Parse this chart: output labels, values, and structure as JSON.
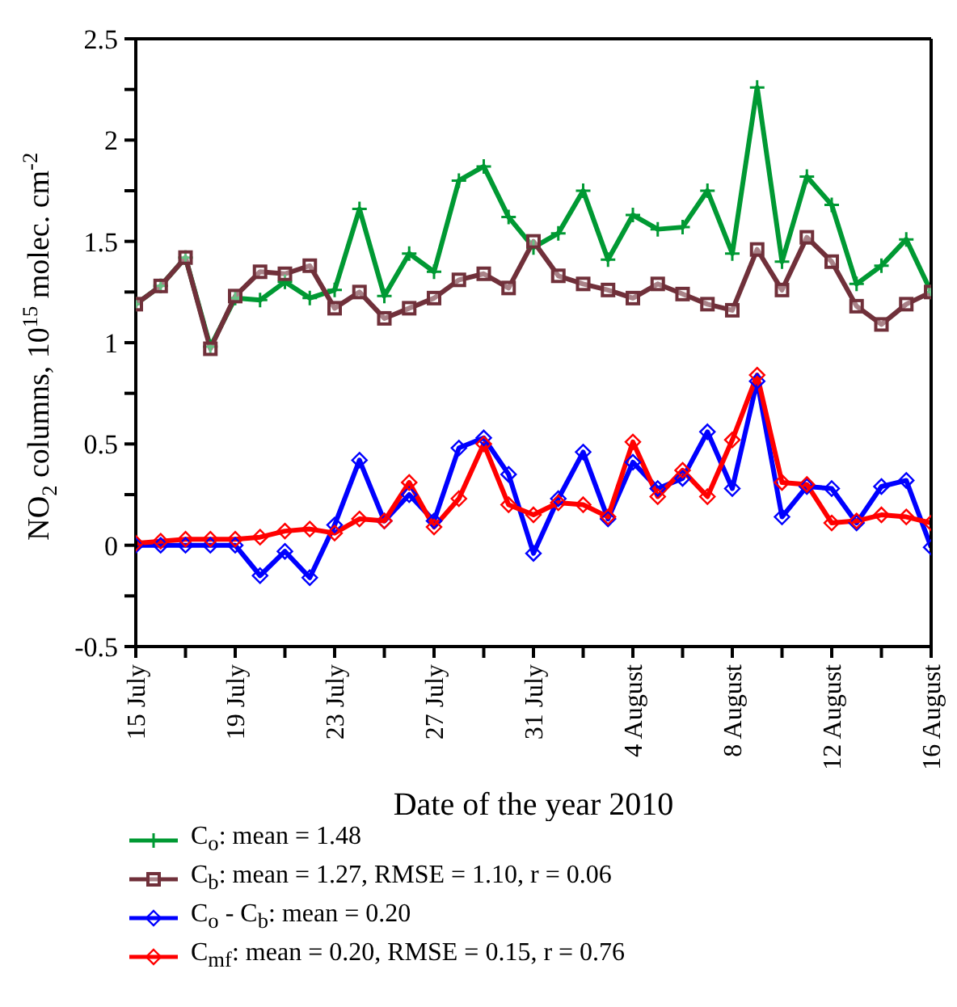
{
  "chart_data": {
    "type": "line",
    "xlabel": "Date of the year 2010",
    "ylabel": "NO$_{2}$ columns, 10$^{15}$ molec. cm$^{-2}$",
    "x": [
      "2010-07-15",
      "2010-07-16",
      "2010-07-17",
      "2010-07-18",
      "2010-07-19",
      "2010-07-20",
      "2010-07-21",
      "2010-07-22",
      "2010-07-23",
      "2010-07-24",
      "2010-07-25",
      "2010-07-26",
      "2010-07-27",
      "2010-07-28",
      "2010-07-29",
      "2010-07-30",
      "2010-07-31",
      "2010-08-01",
      "2010-08-02",
      "2010-08-03",
      "2010-08-04",
      "2010-08-05",
      "2010-08-06",
      "2010-08-07",
      "2010-08-08",
      "2010-08-09",
      "2010-08-10",
      "2010-08-11",
      "2010-08-12",
      "2010-08-13",
      "2010-08-14",
      "2010-08-15",
      "2010-08-16"
    ],
    "xlim": [
      "2010-07-15",
      "2010-08-16"
    ],
    "xticks": [
      {
        "value": "2010-07-15",
        "label": "15 July"
      },
      {
        "value": "2010-07-17",
        "label": null
      },
      {
        "value": "2010-07-19",
        "label": "19 July"
      },
      {
        "value": "2010-07-21",
        "label": null
      },
      {
        "value": "2010-07-23",
        "label": "23 July"
      },
      {
        "value": "2010-07-25",
        "label": null
      },
      {
        "value": "2010-07-27",
        "label": "27 July"
      },
      {
        "value": "2010-07-29",
        "label": null
      },
      {
        "value": "2010-07-31",
        "label": "31 July"
      },
      {
        "value": "2010-08-02",
        "label": null
      },
      {
        "value": "2010-08-04",
        "label": "4 August"
      },
      {
        "value": "2010-08-06",
        "label": null
      },
      {
        "value": "2010-08-08",
        "label": "8 August"
      },
      {
        "value": "2010-08-10",
        "label": null
      },
      {
        "value": "2010-08-12",
        "label": "12 August"
      },
      {
        "value": "2010-08-14",
        "label": null
      },
      {
        "value": "2010-08-16",
        "label": "16 August"
      }
    ],
    "ylim": [
      -0.5,
      2.5
    ],
    "yticks": [
      -0.5,
      {
        "value": -0.25,
        "label": null
      },
      0,
      {
        "value": 0.25,
        "label": null
      },
      0.5,
      {
        "value": 0.75,
        "label": null
      },
      1,
      {
        "value": 1.25,
        "label": null
      },
      1.5,
      {
        "value": 1.75,
        "label": null
      },
      2,
      {
        "value": 2.25,
        "label": null
      },
      2.5
    ],
    "grid": false,
    "legend": "bottom",
    "line_style": "solid",
    "series": [
      {
        "name": "C$_{o}$: mean = 1.48",
        "color": "#009933",
        "marker": "cross",
        "values": [
          1.19,
          1.28,
          1.42,
          0.98,
          1.22,
          1.21,
          1.3,
          1.22,
          1.26,
          1.66,
          1.23,
          1.44,
          1.35,
          1.8,
          1.87,
          1.62,
          1.47,
          1.54,
          1.75,
          1.41,
          1.63,
          1.56,
          1.57,
          1.75,
          1.44,
          2.26,
          1.4,
          1.82,
          1.68,
          1.29,
          1.38,
          1.51,
          1.25
        ]
      },
      {
        "name": "C$_{b}$: mean = 1.27, RMSE = 1.10, r = 0.06",
        "color": "#70303a",
        "marker": "square",
        "values": [
          1.19,
          1.28,
          1.42,
          0.97,
          1.23,
          1.35,
          1.34,
          1.38,
          1.17,
          1.25,
          1.12,
          1.17,
          1.22,
          1.31,
          1.34,
          1.27,
          1.5,
          1.33,
          1.29,
          1.26,
          1.22,
          1.29,
          1.24,
          1.19,
          1.16,
          1.46,
          1.26,
          1.52,
          1.4,
          1.18,
          1.09,
          1.19,
          1.25
        ]
      },
      {
        "name": "C$_{o}$ - C$_{b}$: mean = 0.20",
        "color": "#0000ff",
        "marker": "diamond",
        "values": [
          0,
          0,
          0,
          0,
          0,
          -0.15,
          -0.03,
          -0.16,
          0.1,
          0.42,
          0.12,
          0.25,
          0.12,
          0.48,
          0.53,
          0.35,
          -0.04,
          0.23,
          0.46,
          0.13,
          0.41,
          0.28,
          0.33,
          0.56,
          0.28,
          0.81,
          0.14,
          0.29,
          0.28,
          0.11,
          0.29,
          0.32,
          -0.01
        ]
      },
      {
        "name": "C$_{mf}$: mean = 0.20, RMSE = 0.15, r = 0.76",
        "color": "#ff0000",
        "marker": "diamond",
        "values": [
          0.01,
          0.02,
          0.03,
          0.03,
          0.03,
          0.04,
          0.07,
          0.08,
          0.06,
          0.13,
          0.12,
          0.31,
          0.09,
          0.23,
          0.5,
          0.2,
          0.15,
          0.21,
          0.2,
          0.14,
          0.51,
          0.24,
          0.37,
          0.24,
          0.52,
          0.84,
          0.31,
          0.3,
          0.11,
          0.12,
          0.15,
          0.14,
          0.11
        ]
      }
    ]
  }
}
